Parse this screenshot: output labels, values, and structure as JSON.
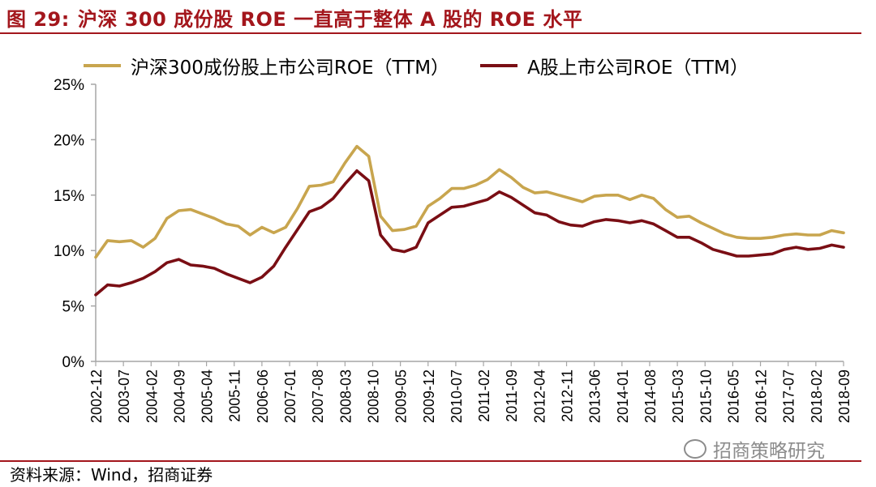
{
  "title": {
    "number": "图 29:",
    "text": "沪深 300 成份股 ROE 一直高于整体 A 股的 ROE 水平"
  },
  "source": "资料来源：Wind，招商证券",
  "watermark": "招商策略研究",
  "colors": {
    "hs300": "#c8a54e",
    "ashare": "#7a0e14",
    "title": "#a3161c",
    "axis": "#a6a6a6"
  },
  "chart_data": {
    "type": "line",
    "title": "",
    "xlabel": "",
    "ylabel": "",
    "ylim": [
      0,
      25
    ],
    "yticks": [
      0,
      5,
      10,
      15,
      20,
      25
    ],
    "ytick_labels": [
      "0%",
      "5%",
      "10%",
      "15%",
      "20%",
      "25%"
    ],
    "grid": false,
    "legend_position": "top",
    "x_tick_labels": [
      "2002-12",
      "2003-07",
      "2004-02",
      "2004-09",
      "2005-04",
      "2005-11",
      "2006-06",
      "2007-01",
      "2007-08",
      "2008-03",
      "2008-10",
      "2009-05",
      "2009-12",
      "2010-07",
      "2011-02",
      "2011-09",
      "2012-04",
      "2012-11",
      "2013-06",
      "2014-01",
      "2014-08",
      "2015-03",
      "2015-10",
      "2016-05",
      "2016-12",
      "2017-07",
      "2018-02",
      "2018-09"
    ],
    "x": [
      "2002-12",
      "2003-03",
      "2003-06",
      "2003-09",
      "2003-12",
      "2004-03",
      "2004-06",
      "2004-09",
      "2004-12",
      "2005-03",
      "2005-06",
      "2005-09",
      "2005-12",
      "2006-03",
      "2006-06",
      "2006-09",
      "2006-12",
      "2007-03",
      "2007-06",
      "2007-09",
      "2007-12",
      "2008-03",
      "2008-06",
      "2008-09",
      "2008-12",
      "2009-03",
      "2009-06",
      "2009-09",
      "2009-12",
      "2010-03",
      "2010-06",
      "2010-09",
      "2010-12",
      "2011-03",
      "2011-06",
      "2011-09",
      "2011-12",
      "2012-03",
      "2012-06",
      "2012-09",
      "2012-12",
      "2013-03",
      "2013-06",
      "2013-09",
      "2013-12",
      "2014-03",
      "2014-06",
      "2014-09",
      "2014-12",
      "2015-03",
      "2015-06",
      "2015-09",
      "2015-12",
      "2016-03",
      "2016-06",
      "2016-09",
      "2016-12",
      "2017-03",
      "2017-06",
      "2017-09",
      "2017-12",
      "2018-03",
      "2018-06",
      "2018-09"
    ],
    "series": [
      {
        "name": "沪深300成份股上市公司ROE（TTM）",
        "color": "#c8a54e",
        "values": [
          9.4,
          10.9,
          10.8,
          10.9,
          10.3,
          11.1,
          12.9,
          13.6,
          13.7,
          13.3,
          12.9,
          12.4,
          12.2,
          11.4,
          12.1,
          11.6,
          12.1,
          13.8,
          15.8,
          15.9,
          16.2,
          17.9,
          19.4,
          18.5,
          13.1,
          11.8,
          11.9,
          12.2,
          14.0,
          14.7,
          15.6,
          15.6,
          15.9,
          16.4,
          17.3,
          16.6,
          15.7,
          15.2,
          15.3,
          15.0,
          14.7,
          14.4,
          14.9,
          15.0,
          15.0,
          14.6,
          15.0,
          14.7,
          13.7,
          13.0,
          13.1,
          12.5,
          12.0,
          11.5,
          11.2,
          11.1,
          11.1,
          11.2,
          11.4,
          11.5,
          11.4,
          11.4,
          11.8,
          11.6
        ]
      },
      {
        "name": "A股上市公司ROE（TTM）",
        "color": "#7a0e14",
        "values": [
          6.0,
          6.9,
          6.8,
          7.1,
          7.5,
          8.1,
          8.9,
          9.2,
          8.7,
          8.6,
          8.4,
          7.9,
          7.5,
          7.1,
          7.6,
          8.6,
          10.3,
          11.9,
          13.5,
          13.9,
          14.7,
          16.0,
          17.2,
          16.3,
          11.4,
          10.1,
          9.9,
          10.3,
          12.5,
          13.2,
          13.9,
          14.0,
          14.3,
          14.6,
          15.3,
          14.8,
          14.1,
          13.4,
          13.2,
          12.6,
          12.3,
          12.2,
          12.6,
          12.8,
          12.7,
          12.5,
          12.7,
          12.4,
          11.8,
          11.2,
          11.2,
          10.7,
          10.1,
          9.8,
          9.5,
          9.5,
          9.6,
          9.7,
          10.1,
          10.3,
          10.1,
          10.2,
          10.5,
          10.3
        ]
      }
    ]
  }
}
